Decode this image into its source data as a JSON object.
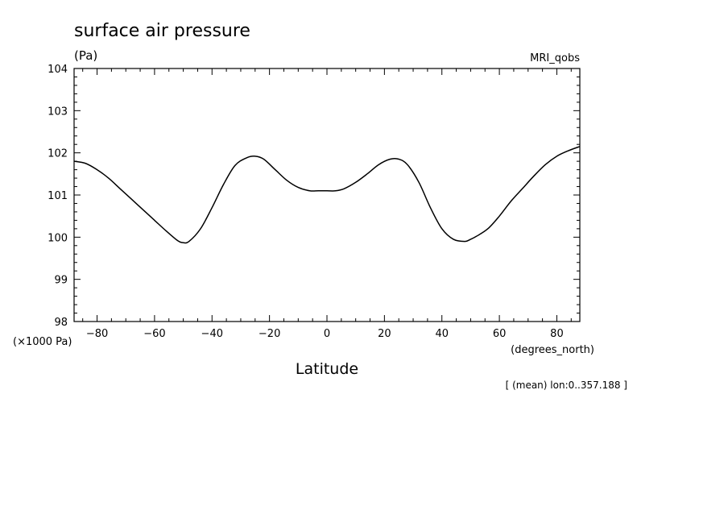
{
  "chart_data": {
    "type": "line",
    "title": "surface air pressure",
    "units_label": "(Pa)",
    "dataset_label": "MRI_qobs",
    "ylabel_scale": "(×1000 Pa)",
    "xlabel": "Latitude",
    "xlabel_units": "(degrees_north)",
    "footnote": "[ (mean) lon:0..357.188 ]",
    "xlim": [
      -88,
      88
    ],
    "ylim": [
      98,
      104
    ],
    "x_ticks": [
      -80,
      -60,
      -40,
      -20,
      0,
      20,
      40,
      60,
      80
    ],
    "x_tick_labels": [
      "−80",
      "−60",
      "−40",
      "−20",
      "0",
      "20",
      "40",
      "60",
      "80"
    ],
    "y_ticks": [
      98,
      99,
      100,
      101,
      102,
      103,
      104
    ],
    "y_tick_labels": [
      "98",
      "99",
      "100",
      "101",
      "102",
      "103",
      "104"
    ],
    "grid": false,
    "series": [
      {
        "x": [
          -88,
          -84,
          -80,
          -76,
          -72,
          -68,
          -64,
          -60,
          -56,
          -52,
          -50,
          -48,
          -44,
          -40,
          -36,
          -32,
          -28,
          -25,
          -22,
          -18,
          -14,
          -10,
          -6,
          -3,
          0,
          3,
          6,
          10,
          14,
          18,
          22,
          25,
          28,
          32,
          36,
          40,
          44,
          48,
          50,
          52,
          56,
          60,
          64,
          68,
          72,
          76,
          80,
          84,
          88
        ],
        "y": [
          101.8,
          101.75,
          101.6,
          101.4,
          101.15,
          100.9,
          100.65,
          100.4,
          100.15,
          99.92,
          99.87,
          99.9,
          100.2,
          100.7,
          101.25,
          101.7,
          101.88,
          101.92,
          101.85,
          101.6,
          101.35,
          101.18,
          101.1,
          101.1,
          101.1,
          101.1,
          101.15,
          101.3,
          101.5,
          101.72,
          101.85,
          101.85,
          101.72,
          101.3,
          100.7,
          100.2,
          99.95,
          99.9,
          99.95,
          100.02,
          100.2,
          100.5,
          100.85,
          101.15,
          101.45,
          101.72,
          101.92,
          102.05,
          102.15
        ]
      }
    ]
  }
}
